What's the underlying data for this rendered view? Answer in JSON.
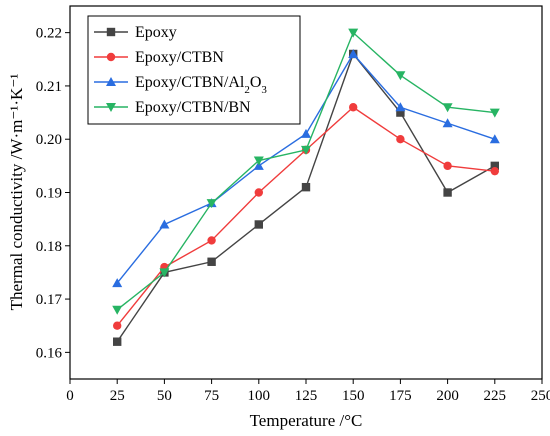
{
  "chart_data": {
    "type": "line",
    "x": [
      25,
      50,
      75,
      100,
      125,
      150,
      175,
      200,
      225
    ],
    "series": [
      {
        "name": "Epoxy",
        "color": "#444444",
        "marker": "square",
        "values": [
          0.162,
          0.175,
          0.177,
          0.184,
          0.191,
          0.216,
          0.205,
          0.19,
          0.195
        ]
      },
      {
        "name": "Epoxy/CTBN",
        "color": "#f03c3c",
        "marker": "circle",
        "values": [
          0.165,
          0.176,
          0.181,
          0.19,
          0.198,
          0.206,
          0.2,
          0.195,
          0.194
        ]
      },
      {
        "name": "Epoxy/CTBN/Al2O3",
        "color": "#2a6de0",
        "marker": "triangle-up",
        "values": [
          0.173,
          0.184,
          0.188,
          0.195,
          0.201,
          0.216,
          0.206,
          0.203,
          0.2
        ]
      },
      {
        "name": "Epoxy/CTBN/BN",
        "color": "#27b463",
        "marker": "triangle-down",
        "values": [
          0.168,
          0.175,
          0.188,
          0.196,
          0.198,
          0.22,
          0.212,
          0.206,
          0.205
        ]
      }
    ],
    "xlabel": "Temperature /°C",
    "ylabel": "Thermal conductivity /W·m⁻¹·K⁻¹",
    "xlim": [
      0,
      250
    ],
    "ylim": [
      0.155,
      0.225
    ],
    "xticks": [
      0,
      25,
      50,
      75,
      100,
      125,
      150,
      175,
      200,
      225,
      250
    ],
    "yticks": [
      0.16,
      0.17,
      0.18,
      0.19,
      0.2,
      0.21,
      0.22
    ],
    "ytick_labels": [
      "0.16",
      "0.17",
      "0.18",
      "0.19",
      "0.20",
      "0.21",
      "0.22"
    ],
    "grid": false,
    "legend_position": "top-left"
  }
}
